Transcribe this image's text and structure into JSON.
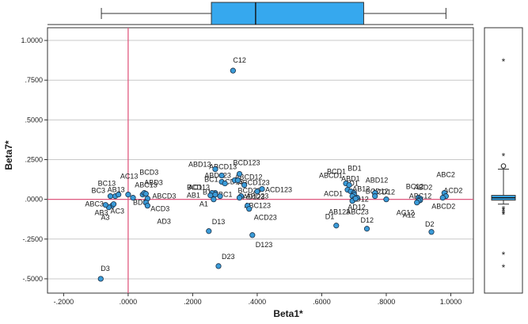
{
  "chart_data": {
    "type": "scatter",
    "xlabel": "Beta1*",
    "ylabel": "Beta7*",
    "xlim": [
      -0.25,
      1.07
    ],
    "ylim": [
      -0.59,
      1.08
    ],
    "xticks": [
      -0.2,
      0.0,
      0.2,
      0.4,
      0.6,
      0.8,
      1.0
    ],
    "xtick_labels": [
      "-.2000",
      ".0000",
      ".2000",
      ".4000",
      ".6000",
      ".8000",
      "1.0000"
    ],
    "yticks": [
      -0.5,
      -0.25,
      0.0,
      0.25,
      0.5,
      0.75,
      1.0
    ],
    "ytick_labels": [
      "-.5000",
      "-.2500",
      ".0000",
      ".2500",
      ".5000",
      ".7500",
      "1.0000"
    ],
    "grid": "horizontal",
    "reference_lines": {
      "x": 0.0,
      "y": 0.0,
      "color": "#e05a80"
    },
    "marker_color": "#3a9bd8",
    "box_color": "#36a8ee",
    "points": [
      {
        "label": "C12",
        "x": 0.325,
        "y": 0.81
      },
      {
        "label": "D3",
        "x": -0.085,
        "y": -0.5
      },
      {
        "label": "D23",
        "x": 0.28,
        "y": -0.42
      },
      {
        "label": "D13",
        "x": 0.25,
        "y": -0.2
      },
      {
        "label": "D123",
        "x": 0.385,
        "y": -0.225
      },
      {
        "label": "ABD23",
        "x": 0.37,
        "y": -0.04
      },
      {
        "label": "ACD23",
        "x": 0.375,
        "y": -0.06
      },
      {
        "label": "A3",
        "x": -0.05,
        "y": -0.04
      },
      {
        "label": "AB3",
        "x": -0.06,
        "y": -0.05
      },
      {
        "label": "AC3",
        "x": -0.045,
        "y": -0.03
      },
      {
        "label": "ABC3",
        "x": -0.07,
        "y": -0.035
      },
      {
        "label": "BC3",
        "x": -0.055,
        "y": 0.02
      },
      {
        "label": "AB13",
        "x": -0.04,
        "y": 0.02
      },
      {
        "label": "BC13",
        "x": -0.03,
        "y": 0.03
      },
      {
        "label": "AC13",
        "x": 0.0,
        "y": 0.03
      },
      {
        "label": "ABC13",
        "x": 0.045,
        "y": 0.03
      },
      {
        "label": "BCD3",
        "x": 0.05,
        "y": 0.04
      },
      {
        "label": "ABD3",
        "x": 0.055,
        "y": 0.035
      },
      {
        "label": "ABCD3",
        "x": 0.06,
        "y": 0.005
      },
      {
        "label": "ACD3",
        "x": 0.055,
        "y": -0.02
      },
      {
        "label": "AD3",
        "x": 0.06,
        "y": -0.04
      },
      {
        "label": "BD3",
        "x": 0.015,
        "y": 0.01
      },
      {
        "label": "ABD13",
        "x": 0.27,
        "y": 0.19
      },
      {
        "label": "ABCD13",
        "x": 0.29,
        "y": 0.15
      },
      {
        "label": "BCD123",
        "x": 0.345,
        "y": 0.16
      },
      {
        "label": "BCD13",
        "x": 0.27,
        "y": 0.04
      },
      {
        "label": "ABD123",
        "x": 0.33,
        "y": 0.12
      },
      {
        "label": "ABCD12",
        "x": 0.34,
        "y": 0.12
      },
      {
        "label": "BC1",
        "x": 0.29,
        "y": 0.11
      },
      {
        "label": "ACD13",
        "x": 0.3,
        "y": 0.1
      },
      {
        "label": "ABCD123",
        "x": 0.36,
        "y": 0.09
      },
      {
        "label": "AC1",
        "x": 0.26,
        "y": 0.04
      },
      {
        "label": "AB1",
        "x": 0.255,
        "y": 0.025
      },
      {
        "label": "B1",
        "x": 0.27,
        "y": 0.03
      },
      {
        "label": "ABC1",
        "x": 0.285,
        "y": 0.02
      },
      {
        "label": "A1",
        "x": 0.265,
        "y": 0.0
      },
      {
        "label": "BCD23",
        "x": 0.35,
        "y": 0.02
      },
      {
        "label": "ACD123",
        "x": 0.415,
        "y": 0.065
      },
      {
        "label": "AD123",
        "x": 0.4,
        "y": 0.05
      },
      {
        "label": "ABC123",
        "x": 0.345,
        "y": 0.01
      },
      {
        "label": "BCD1",
        "x": 0.675,
        "y": 0.1
      },
      {
        "label": "BD1",
        "x": 0.685,
        "y": 0.09
      },
      {
        "label": "ABCD1",
        "x": 0.68,
        "y": 0.06
      },
      {
        "label": "ABD1",
        "x": 0.69,
        "y": 0.05
      },
      {
        "label": "AD1",
        "x": 0.7,
        "y": 0.04
      },
      {
        "label": "AB12",
        "x": 0.7,
        "y": 0.03
      },
      {
        "label": "ACD1",
        "x": 0.695,
        "y": 0.02
      },
      {
        "label": "ABD12",
        "x": 0.765,
        "y": 0.04
      },
      {
        "label": "BCD12",
        "x": 0.765,
        "y": 0.02
      },
      {
        "label": "BD12",
        "x": 0.71,
        "y": 0.01
      },
      {
        "label": "AD12",
        "x": 0.7,
        "y": 0.0
      },
      {
        "label": "AB123",
        "x": 0.695,
        "y": -0.01
      },
      {
        "label": "ABC23",
        "x": 0.705,
        "y": 0.005
      },
      {
        "label": "D1",
        "x": 0.645,
        "y": -0.165
      },
      {
        "label": "D12",
        "x": 0.74,
        "y": -0.185
      },
      {
        "label": "ACD12",
        "x": 0.8,
        "y": 0.0
      },
      {
        "label": "BC12",
        "x": 0.9,
        "y": 0.01
      },
      {
        "label": "ABD2",
        "x": 0.905,
        "y": 0.005
      },
      {
        "label": "ABC12",
        "x": 0.905,
        "y": -0.005
      },
      {
        "label": "ABC2",
        "x": 0.98,
        "y": 0.04
      },
      {
        "label": "ACD2",
        "x": 0.985,
        "y": 0.02
      },
      {
        "label": "ABCD2",
        "x": 0.975,
        "y": 0.01
      },
      {
        "label": "AC12",
        "x": 0.9,
        "y": -0.01
      },
      {
        "label": "A12",
        "x": 0.895,
        "y": -0.02
      },
      {
        "label": "D2",
        "x": 0.94,
        "y": -0.205
      }
    ],
    "x_boxplot": {
      "whisker_low": -0.083,
      "q1": 0.258,
      "median": 0.395,
      "q3": 0.73,
      "whisker_high": 0.985
    },
    "y_boxplot": {
      "whisker_low": -0.03,
      "q1": 0.0,
      "median": 0.01,
      "q3": 0.02,
      "whisker_high": 0.19,
      "outliers": [
        0.87,
        0.275,
        0.21,
        -0.06,
        -0.07,
        -0.085,
        -0.095,
        -0.345,
        -0.425
      ],
      "outlier_markers": [
        "*",
        "*",
        "o",
        "*",
        "*",
        "*",
        "*",
        "*",
        "*"
      ]
    }
  }
}
